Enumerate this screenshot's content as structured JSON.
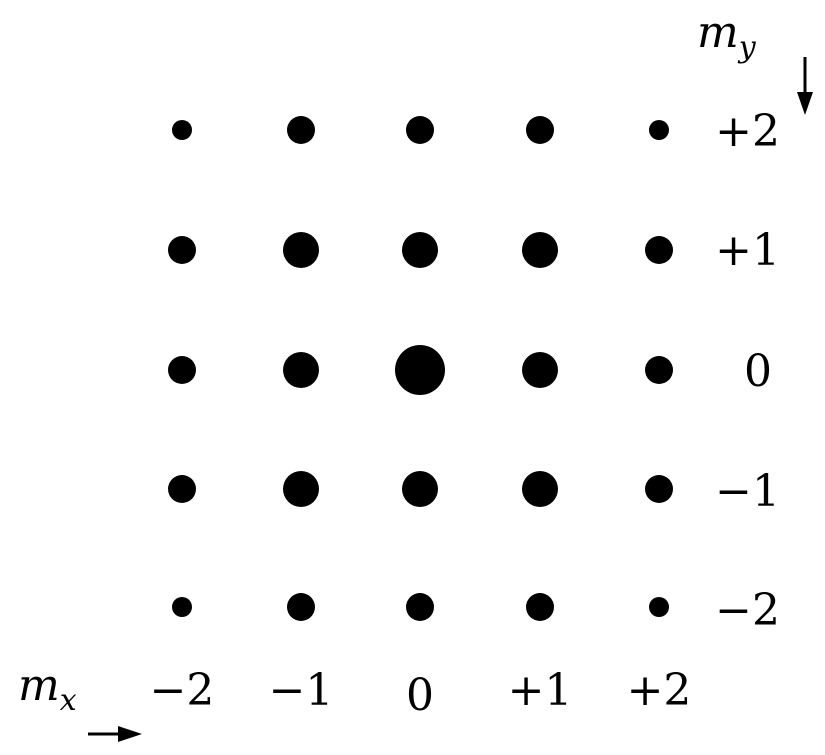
{
  "axes": {
    "x": {
      "label": "m",
      "subscript": "x",
      "ticks": [
        "−2",
        "−1",
        "0",
        "+1",
        "+2"
      ]
    },
    "y": {
      "label": "m",
      "subscript": "y",
      "ticks": [
        "+2",
        "+1",
        "0",
        "−1",
        "−2"
      ]
    }
  },
  "grid": {
    "mx_values": [
      -2,
      -1,
      0,
      1,
      2
    ],
    "my_values": [
      2,
      1,
      0,
      -1,
      -2
    ],
    "dot_size_rank": [
      [
        1,
        2,
        2,
        2,
        1
      ],
      [
        2,
        3,
        3,
        3,
        2
      ],
      [
        2,
        3,
        4,
        3,
        2
      ],
      [
        2,
        3,
        3,
        3,
        2
      ],
      [
        1,
        2,
        2,
        2,
        1
      ]
    ]
  },
  "colors": {
    "ink": "#000000",
    "background": "#ffffff"
  }
}
